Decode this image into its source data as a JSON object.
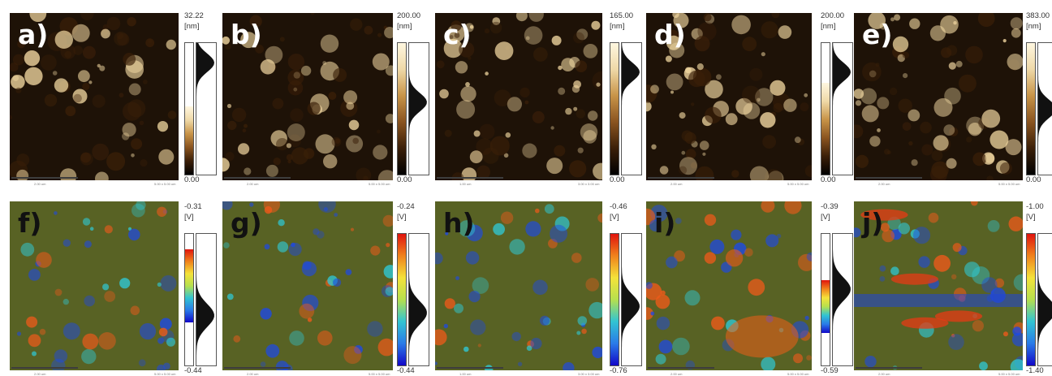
{
  "panels": [
    {
      "id": "a",
      "label": "a)",
      "max": "32.22",
      "min": "0.00",
      "unit": "[nm]",
      "type": "topo",
      "cb_level": 0.52,
      "peak": 0.85,
      "cb_gradient": "topo",
      "scale_text": "2.00 um",
      "size_text": "5.00 x 5.00 um",
      "label_color": "#ffffff"
    },
    {
      "id": "b",
      "label": "b)",
      "max": "200.00",
      "min": "0.00",
      "unit": "[nm]",
      "type": "topo",
      "cb_level": 1.0,
      "peak": 0.55,
      "cb_gradient": "topo",
      "scale_text": "2.00 um",
      "size_text": "5.00 x 5.00 um",
      "label_color": "#ffffff"
    },
    {
      "id": "c",
      "label": "c)",
      "max": "165.00",
      "min": "0.00",
      "unit": "[nm]",
      "type": "topo",
      "cb_level": 1.0,
      "peak": 0.78,
      "cb_gradient": "topo",
      "scale_text": "1.00 um",
      "size_text": "3.00 x 3.00 um",
      "label_color": "#ffffff"
    },
    {
      "id": "d",
      "label": "d)",
      "max": "200.00",
      "min": "0.00",
      "unit": "[nm]",
      "type": "topo",
      "cb_level": 0.7,
      "peak": 0.78,
      "cb_gradient": "topo",
      "scale_text": "2.00 um",
      "size_text": "5.00 x 5.00 um",
      "label_color": "#ffffff"
    },
    {
      "id": "e",
      "label": "e)",
      "max": "383.00",
      "min": "0.00",
      "unit": "[nm]",
      "type": "topo",
      "cb_level": 1.0,
      "peak": 0.5,
      "cb_gradient": "topo",
      "scale_text": "2.00 um",
      "size_text": "5.00 x 5.00 um",
      "label_color": "#ffffff"
    },
    {
      "id": "f",
      "label": "f)",
      "max": "-0.31",
      "min": "-0.44",
      "unit": "[V]",
      "type": "kpfm",
      "cb_level": 0.95,
      "peak": 0.38,
      "cb_gradient": "kpfm_f",
      "scale_text": "2.00 um",
      "size_text": "5.00 x 5.00 um",
      "label_color": "#111111"
    },
    {
      "id": "g",
      "label": "g)",
      "max": "-0.24",
      "min": "-0.44",
      "unit": "[V]",
      "type": "kpfm",
      "cb_level": 1.0,
      "peak": 0.4,
      "cb_gradient": "kpfm",
      "scale_text": "2.00 um",
      "size_text": "5.00 x 5.00 um",
      "label_color": "#111111"
    },
    {
      "id": "h",
      "label": "h)",
      "max": "-0.46",
      "min": "-0.76",
      "unit": "[V]",
      "type": "kpfm",
      "cb_level": 1.0,
      "peak": 0.45,
      "cb_gradient": "kpfm",
      "scale_text": "1.00 um",
      "size_text": "3.00 x 3.00 um",
      "label_color": "#111111"
    },
    {
      "id": "i",
      "label": "i)",
      "max": "-0.39",
      "min": "-0.59",
      "unit": "[V]",
      "type": "kpfm",
      "cb_level": 0.78,
      "peak": 0.58,
      "cb_gradient": "kpfm_i",
      "scale_text": "2.00 um",
      "size_text": "5.00 x 5.00 um",
      "label_color": "#111111"
    },
    {
      "id": "j",
      "label": "j)",
      "max": "-1.00",
      "min": "-1.40",
      "unit": "[V]",
      "type": "kpfm",
      "cb_level": 1.0,
      "peak": 0.42,
      "cb_gradient": "kpfm",
      "scale_text": "2.00 um",
      "size_text": "5.00 x 5.00 um",
      "label_color": "#111111"
    }
  ],
  "colors": {
    "topo": [
      "#1e1005",
      "#5b3511",
      "#9a6128",
      "#c8914a",
      "#e6c58a",
      "#fbf2d5"
    ],
    "kpfm": [
      "#0f2fd6",
      "#2f86e8",
      "#35c8c8",
      "#b7e14c",
      "#f2e23c",
      "#f08a1e",
      "#e02418"
    ]
  }
}
